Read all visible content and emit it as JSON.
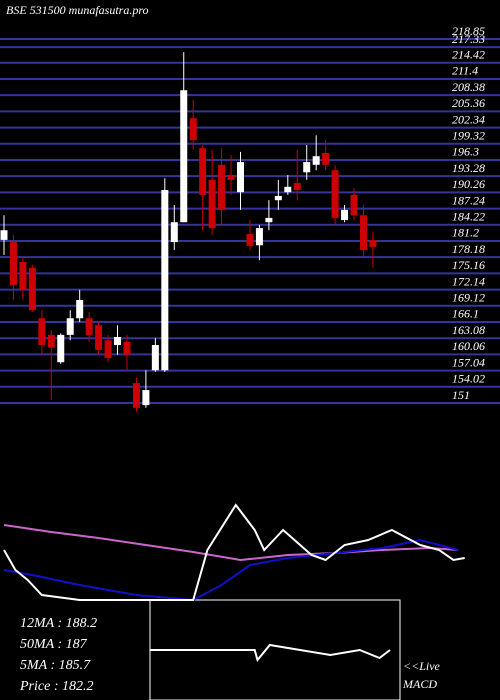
{
  "chart_data": [
    {
      "type": "candlestick",
      "title": "BSE 531500  munafasutra.pro",
      "up_color": "#ffffff",
      "down_color": "#cc0000",
      "grid_color": "#34349a",
      "ylim": [
        151,
        218.85
      ],
      "yticks": [
        218.85,
        217.33,
        214.42,
        211.4,
        208.38,
        205.36,
        202.34,
        199.32,
        196.3,
        193.28,
        190.26,
        187.24,
        184.22,
        181.2,
        178.18,
        175.16,
        172.14,
        169.12,
        166.1,
        163.08,
        160.06,
        157.04,
        154.02,
        151
      ],
      "open": [
        181.4,
        181.0,
        177.3,
        176.2,
        166.8,
        163.7,
        158.6,
        163.7,
        166.8,
        166.8,
        165.5,
        162.7,
        161.8,
        162.4,
        154.7,
        150.6,
        157.1,
        157.1,
        181.0,
        184.7,
        204.1,
        198.5,
        192.6,
        195.4,
        193.5,
        190.3,
        182.5,
        180.4,
        184.7,
        188.8,
        190.3,
        192.0,
        194.0,
        195.4,
        197.6,
        194.4,
        185.1,
        189.8,
        186.0,
        181.4
      ],
      "high": [
        186.0,
        182.3,
        178.0,
        176.7,
        168.3,
        164.6,
        164.0,
        168.3,
        172.1,
        168.0,
        166.1,
        163.7,
        165.5,
        163.7,
        155.7,
        157.1,
        163.1,
        192.9,
        187.9,
        216.4,
        207.5,
        199.1,
        198.2,
        198.5,
        197.2,
        197.8,
        185.1,
        184.2,
        188.8,
        192.6,
        193.5,
        198.2,
        199.1,
        200.9,
        200.0,
        195.4,
        187.9,
        191.1,
        187.9,
        182.9
      ],
      "low": [
        178.6,
        170.2,
        170.2,
        168.0,
        160.0,
        151.6,
        158.3,
        162.7,
        166.1,
        162.4,
        160.0,
        158.6,
        160.0,
        157.1,
        149.3,
        150.1,
        156.8,
        156.8,
        179.5,
        184.7,
        198.2,
        183.2,
        182.3,
        184.2,
        189.8,
        187.0,
        179.5,
        177.6,
        183.2,
        187.0,
        189.8,
        188.8,
        192.6,
        194.4,
        194.4,
        184.2,
        184.7,
        185.1,
        178.0,
        176.2
      ],
      "close": [
        183.2,
        173.0,
        172.1,
        168.3,
        161.8,
        161.3,
        163.7,
        166.8,
        170.2,
        163.7,
        160.9,
        159.4,
        163.3,
        160.0,
        150.1,
        153.4,
        161.8,
        190.7,
        184.7,
        209.3,
        200.0,
        189.8,
        183.6,
        187.0,
        192.6,
        195.9,
        180.3,
        183.6,
        185.5,
        189.6,
        191.3,
        190.7,
        195.9,
        197.0,
        195.4,
        185.5,
        187.0,
        186.0,
        179.5,
        180.1
      ]
    },
    {
      "type": "line",
      "ylim": [
        0,
        100
      ],
      "series": [
        {
          "color": "#cc66cc",
          "x": [
            0,
            5,
            10,
            15,
            20,
            25,
            30,
            35,
            40,
            45,
            48
          ],
          "values": [
            78.9,
            71.6,
            65.3,
            57.9,
            50.5,
            42.1,
            47.4,
            49.5,
            52.6,
            54.7,
            52.6
          ]
        },
        {
          "color": "#1010cc",
          "x": [
            0,
            3,
            8,
            14,
            20,
            23,
            26,
            30,
            35,
            40,
            44,
            48
          ],
          "values": [
            31.6,
            26.3,
            15.8,
            5.3,
            0,
            15.8,
            36.8,
            44.2,
            49.5,
            54.7,
            63.2,
            52.6
          ]
        },
        {
          "color": "#ffffff",
          "x": [
            0,
            1.2,
            2.5,
            4,
            8,
            14,
            20,
            21.5,
            24.5,
            26.5,
            27.5,
            29.5,
            32.5,
            34,
            36,
            38.5,
            41,
            44,
            46,
            47.5,
            48.7
          ],
          "values": [
            52.6,
            31.6,
            21.1,
            5.3,
            0,
            0,
            0,
            52.6,
            100,
            73.7,
            52.6,
            73.7,
            47.4,
            42.1,
            57.9,
            63.2,
            73.7,
            57.9,
            52.6,
            42.1,
            44.2
          ]
        }
      ],
      "annotations": [
        "12MA : 188.2",
        "50MA : 187",
        "5MA : 185.7",
        "Price   : 182.2"
      ]
    },
    {
      "type": "macd",
      "ylim": [
        0,
        100
      ],
      "series": [
        {
          "color": "#ffffff",
          "x": [
            15.4,
            26.5,
            26.8,
            28.1,
            31.3,
            34.5,
            37.6,
            39.7,
            40.8
          ],
          "values": [
            50,
            50,
            40,
            55,
            50,
            45,
            50,
            42,
            50
          ]
        }
      ],
      "annotations": [
        "<<Live",
        "MACD"
      ]
    }
  ]
}
